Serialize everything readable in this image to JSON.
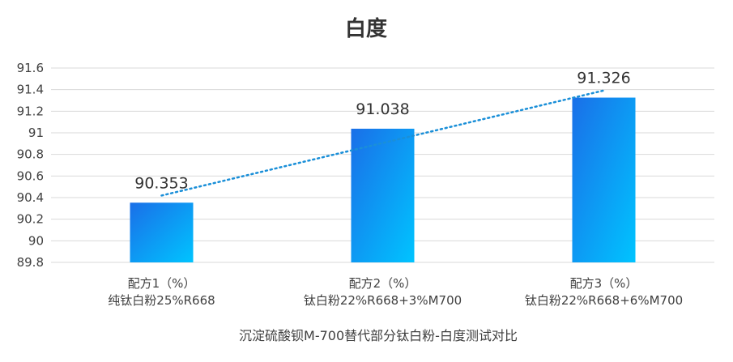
{
  "chart_data": {
    "type": "bar",
    "title": "白度",
    "xlabel": "沉淀硫酸钡M-700替代部分钛白粉-白度测试对比",
    "ylabel": "",
    "ylim": [
      89.8,
      91.6
    ],
    "yticks": [
      "89.8",
      "90",
      "90.2",
      "90.4",
      "90.6",
      "90.8",
      "91",
      "91.2",
      "91.4",
      "91.6"
    ],
    "categories": [
      [
        "配方1（%）",
        "纯钛白粉25%R668"
      ],
      [
        "配方2（%）",
        "钛白粉22%R668+3%M700"
      ],
      [
        "配方3（%）",
        "钛白粉22%R668+6%M700"
      ]
    ],
    "values": [
      90.353,
      91.038,
      91.326
    ],
    "data_labels": [
      "90.353",
      "91.038",
      "91.326"
    ],
    "trendline": "linear",
    "grid": true,
    "colors": {
      "bar_start": "#1a6fe8",
      "bar_end": "#00c4ff",
      "trendline": "#1a8fd8",
      "grid": "#d9d9d9",
      "text": "#404040"
    }
  }
}
